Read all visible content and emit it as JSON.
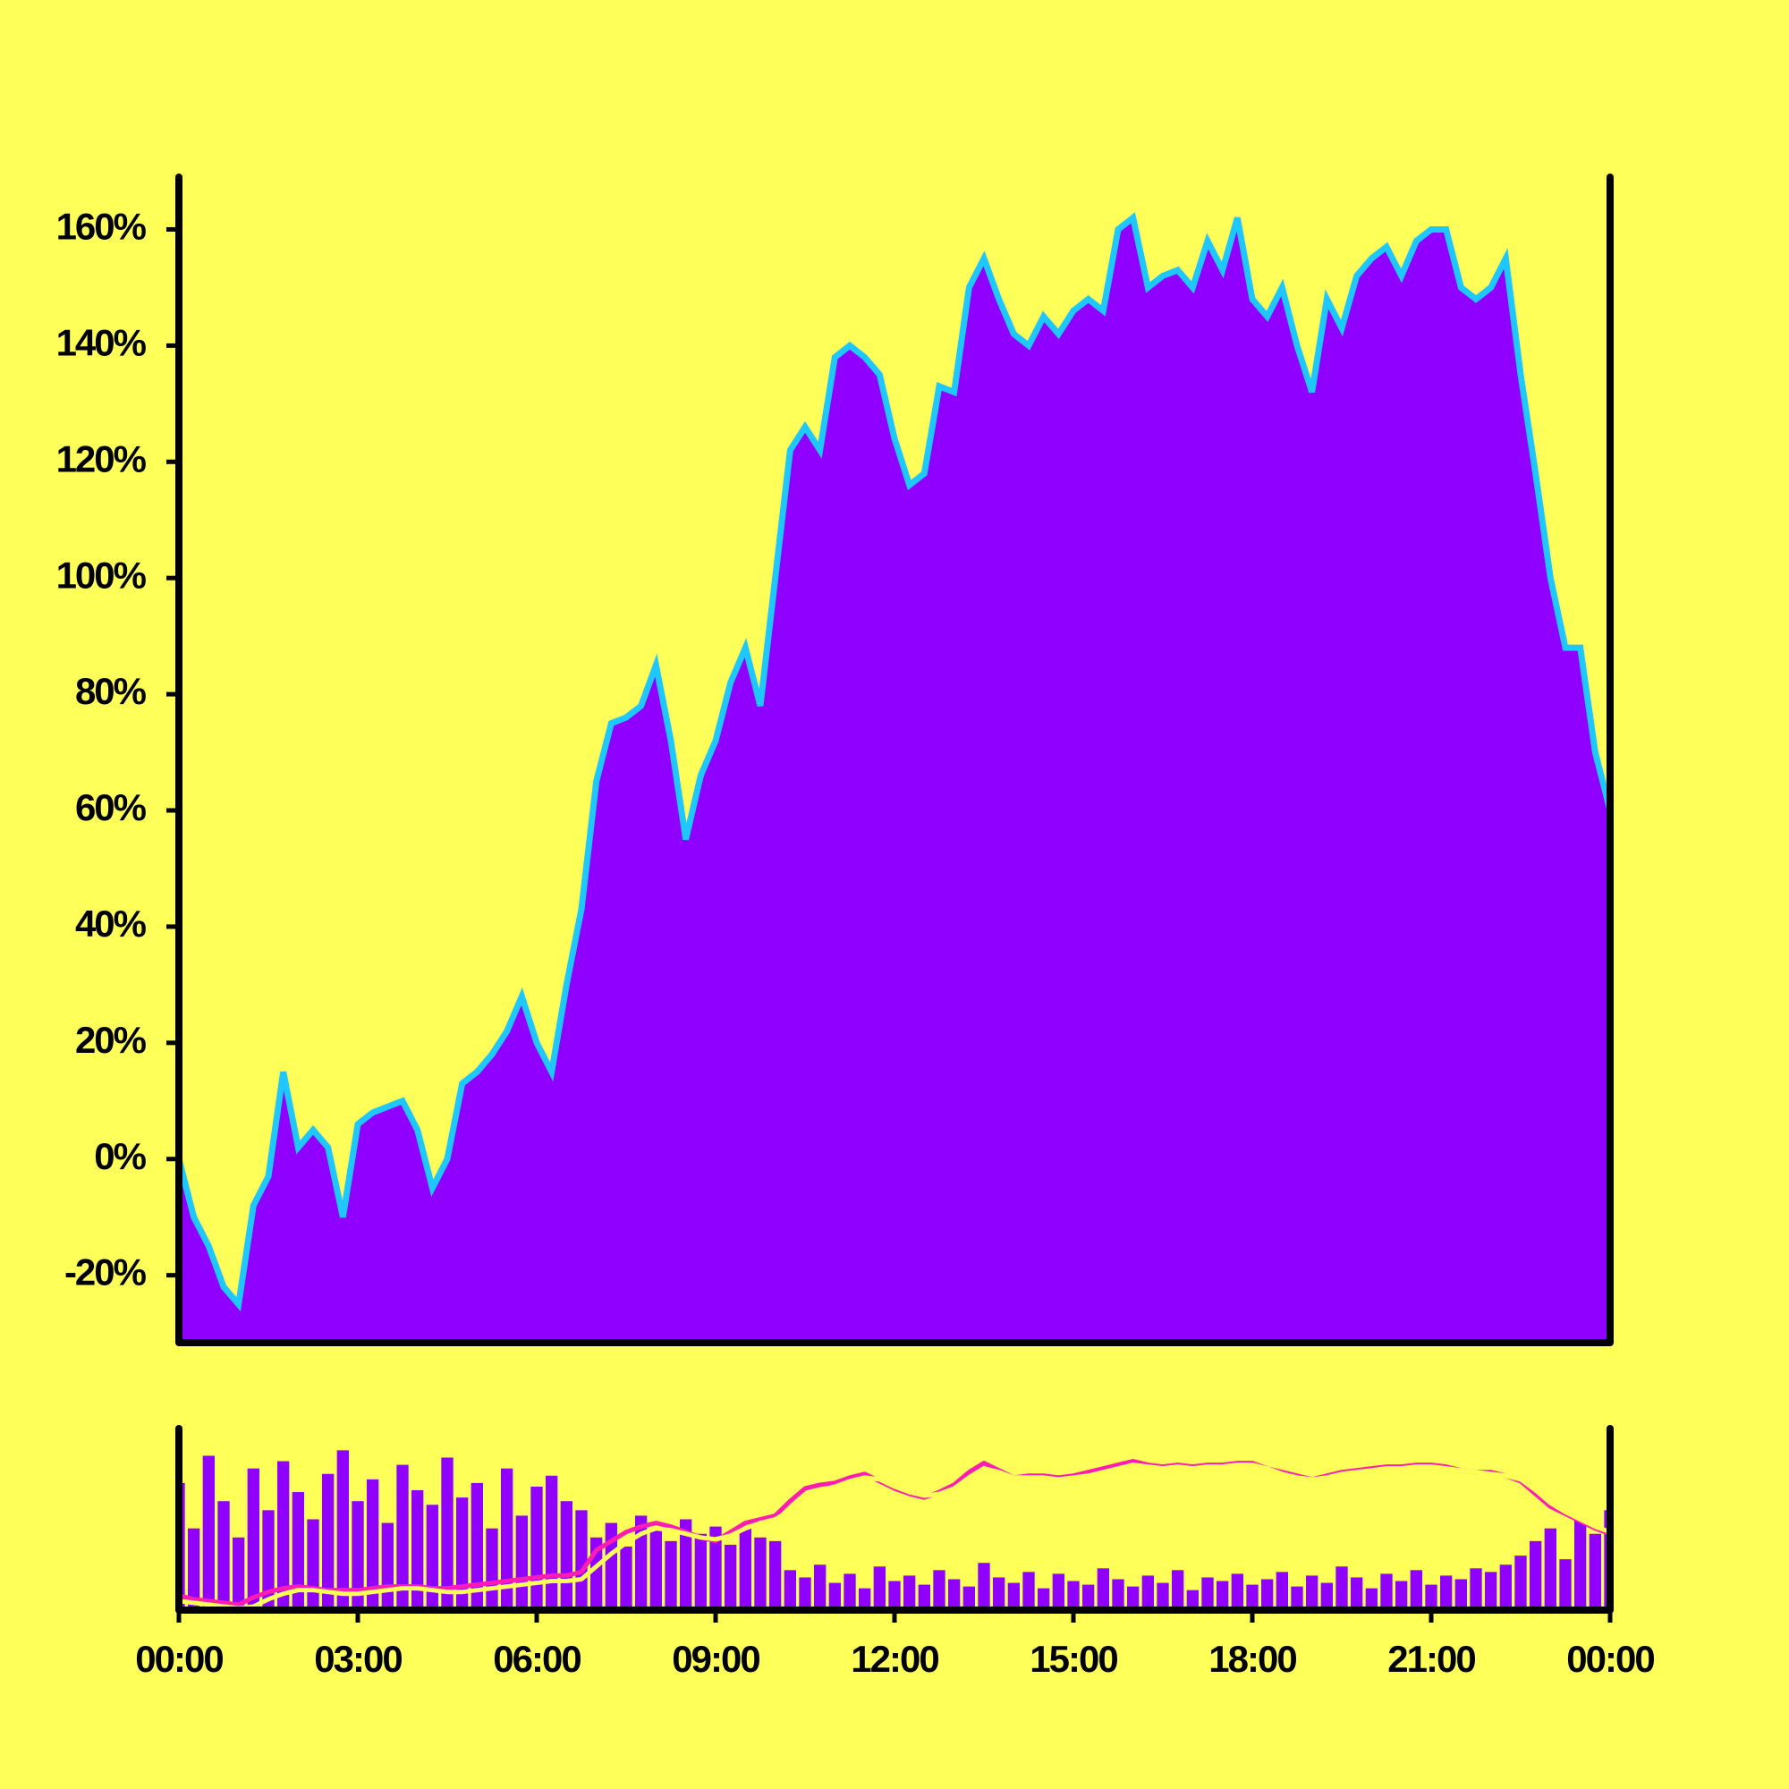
{
  "chart_data": [
    {
      "type": "area",
      "color": "#8f00ff",
      "line_color": "#1ec8ff",
      "x": [
        0,
        0.25,
        0.5,
        0.75,
        1,
        1.25,
        1.5,
        1.75,
        2,
        2.25,
        2.5,
        2.75,
        3,
        3.25,
        3.5,
        3.75,
        4,
        4.25,
        4.5,
        4.75,
        5,
        5.25,
        5.5,
        5.75,
        6,
        6.25,
        6.5,
        6.75,
        7,
        7.25,
        7.5,
        7.75,
        8,
        8.25,
        8.5,
        8.75,
        9,
        9.25,
        9.5,
        9.75,
        10,
        10.25,
        10.5,
        10.75,
        11,
        11.25,
        11.5,
        11.75,
        12,
        12.25,
        12.5,
        12.75,
        13,
        13.25,
        13.5,
        13.75,
        14,
        14.25,
        14.5,
        14.75,
        15,
        15.25,
        15.5,
        15.75,
        16,
        16.25,
        16.5,
        16.75,
        17,
        17.25,
        17.5,
        17.75,
        18,
        18.25,
        18.5,
        18.75,
        19,
        19.25,
        19.5,
        19.75,
        20,
        20.25,
        20.5,
        20.75,
        21,
        21.25,
        21.5,
        21.75,
        22,
        22.25,
        22.5,
        22.75,
        23,
        23.25,
        23.5,
        23.75,
        24
      ],
      "values": [
        0,
        -10,
        -15,
        -22,
        -25,
        -8,
        -3,
        15,
        2,
        5,
        2,
        -10,
        6,
        8,
        9,
        10,
        5,
        -5,
        0,
        13,
        15,
        18,
        22,
        28,
        20,
        15,
        30,
        43,
        65,
        75,
        76,
        78,
        85,
        72,
        55,
        66,
        72,
        82,
        88,
        78,
        100,
        122,
        126,
        122,
        138,
        140,
        138,
        135,
        124,
        116,
        118,
        133,
        132,
        150,
        155,
        148,
        142,
        140,
        145,
        142,
        146,
        148,
        146,
        160,
        162,
        150,
        152,
        153,
        150,
        158,
        153,
        162,
        148,
        145,
        150,
        140,
        132,
        148,
        143,
        152,
        155,
        157,
        152,
        158,
        160,
        160,
        150,
        148,
        150,
        155,
        135,
        118,
        100,
        88,
        88,
        70,
        60
      ],
      "xlim": [
        0,
        24
      ],
      "ylim": [
        -31.6,
        169
      ],
      "yticks": [
        {
          "value": -20,
          "label": "-20%"
        },
        {
          "value": 0,
          "label": "0%"
        },
        {
          "value": 20,
          "label": "20%"
        },
        {
          "value": 40,
          "label": "40%"
        },
        {
          "value": 60,
          "label": "60%"
        },
        {
          "value": 80,
          "label": "80%"
        },
        {
          "value": 100,
          "label": "100%"
        },
        {
          "value": 120,
          "label": "120%"
        },
        {
          "value": 140,
          "label": "140%"
        },
        {
          "value": 160,
          "label": "160%"
        }
      ]
    },
    {
      "type": "bar",
      "color": "#8f00ff",
      "x": [
        0,
        0.25,
        0.5,
        0.75,
        1,
        1.25,
        1.5,
        1.75,
        2,
        2.25,
        2.5,
        2.75,
        3,
        3.25,
        3.5,
        3.75,
        4,
        4.25,
        4.5,
        4.75,
        5,
        5.25,
        5.5,
        5.75,
        6,
        6.25,
        6.5,
        6.75,
        7,
        7.25,
        7.5,
        7.75,
        8,
        8.25,
        8.5,
        8.75,
        9,
        9.25,
        9.5,
        9.75,
        10,
        10.25,
        10.5,
        10.75,
        11,
        11.25,
        11.5,
        11.75,
        12,
        12.25,
        12.5,
        12.75,
        13,
        13.25,
        13.5,
        13.75,
        14,
        14.25,
        14.5,
        14.75,
        15,
        15.25,
        15.5,
        15.75,
        16,
        16.25,
        16.5,
        16.75,
        17,
        17.25,
        17.5,
        17.75,
        18,
        18.25,
        18.5,
        18.75,
        19,
        19.25,
        19.5,
        19.75,
        20,
        20.25,
        20.5,
        20.75,
        21,
        21.25,
        21.5,
        21.75,
        22,
        22.25,
        22.5,
        22.75,
        23,
        23.25,
        23.5,
        23.75,
        24
      ],
      "values": [
        70,
        45,
        85,
        60,
        40,
        78,
        55,
        82,
        65,
        50,
        75,
        88,
        60,
        72,
        48,
        80,
        66,
        58,
        84,
        62,
        70,
        45,
        78,
        52,
        68,
        74,
        60,
        55,
        40,
        48,
        35,
        52,
        44,
        38,
        50,
        42,
        46,
        36,
        45,
        40,
        38,
        22,
        18,
        25,
        15,
        20,
        12,
        24,
        16,
        19,
        14,
        22,
        17,
        13,
        26,
        18,
        15,
        21,
        12,
        20,
        16,
        14,
        23,
        17,
        13,
        19,
        15,
        22,
        11,
        18,
        16,
        20,
        14,
        17,
        21,
        13,
        19,
        15,
        24,
        18,
        12,
        20,
        16,
        22,
        14,
        19,
        17,
        23,
        21,
        25,
        30,
        38,
        45,
        28,
        50,
        42,
        55
      ],
      "series": [
        {
          "color": "#ff1cb4",
          "values": [
            8,
            6,
            5,
            4,
            3,
            7,
            10,
            12,
            13,
            12,
            11,
            11,
            11,
            12,
            13,
            13,
            13,
            12,
            12,
            13,
            14,
            15,
            16,
            17,
            18,
            19,
            19,
            21,
            33,
            38,
            43,
            46,
            48,
            46,
            43,
            40,
            38,
            43,
            48,
            50,
            52,
            60,
            67,
            69,
            70,
            73,
            75,
            71,
            67,
            64,
            62,
            65,
            69,
            76,
            81,
            77,
            73,
            74,
            74,
            73,
            74,
            76,
            78,
            80,
            82,
            80,
            79,
            80,
            79,
            80,
            80,
            81,
            81,
            78,
            76,
            74,
            72,
            74,
            76,
            77,
            78,
            79,
            79,
            80,
            80,
            79,
            77,
            76,
            76,
            74,
            71,
            64,
            57,
            53,
            49,
            45,
            42
          ]
        },
        {
          "color": "#ffff55",
          "values": [
            5,
            4,
            3,
            2,
            1,
            2,
            6,
            9,
            11,
            11,
            10,
            9,
            9,
            10,
            11,
            12,
            12,
            11,
            10,
            10,
            11,
            12,
            13,
            14,
            15,
            16,
            16,
            17,
            24,
            31,
            37,
            42,
            45,
            44,
            42,
            40,
            39,
            41,
            45,
            48,
            50,
            55,
            62,
            66,
            68,
            71,
            73,
            72,
            68,
            65,
            63,
            64,
            67,
            73,
            78,
            76,
            73,
            73,
            73,
            72,
            73,
            74,
            76,
            78,
            80,
            79,
            78,
            79,
            78,
            79,
            79,
            80,
            80,
            78,
            75,
            73,
            72,
            73,
            75,
            76,
            77,
            78,
            78,
            79,
            79,
            78,
            77,
            76,
            75,
            74,
            72,
            66,
            59,
            54,
            50,
            46,
            43
          ]
        }
      ],
      "xlim": [
        0,
        24
      ],
      "ylim": [
        0,
        100
      ],
      "xticks": [
        {
          "value": 0,
          "label": "00:00"
        },
        {
          "value": 3,
          "label": "03:00"
        },
        {
          "value": 6,
          "label": "06:00"
        },
        {
          "value": 9,
          "label": "09:00"
        },
        {
          "value": 12,
          "label": "12:00"
        },
        {
          "value": 15,
          "label": "15:00"
        },
        {
          "value": 18,
          "label": "18:00"
        },
        {
          "value": 21,
          "label": "21:00"
        },
        {
          "value": 24,
          "label": "00:00"
        }
      ]
    }
  ]
}
